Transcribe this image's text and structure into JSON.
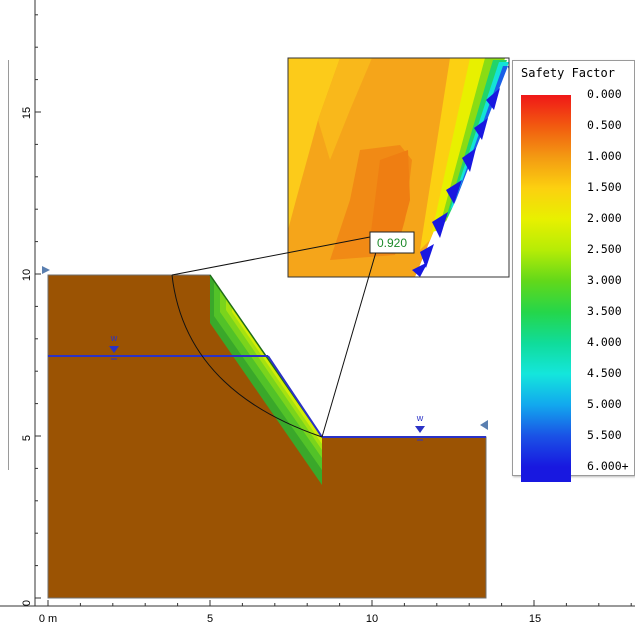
{
  "scale": {
    "x_ticks": [
      "0 m",
      "5",
      "10",
      "15"
    ],
    "y_ticks": [
      "0",
      "5",
      "10",
      "15"
    ]
  },
  "water_marker": "w",
  "callout_value": "0.920",
  "legend": {
    "title": "Safety Factor",
    "entries": [
      {
        "label": "0.000",
        "color": "#f01818"
      },
      {
        "label": "0.500",
        "color": "#f25a10"
      },
      {
        "label": "1.000",
        "color": "#f39a12"
      },
      {
        "label": "1.500",
        "color": "#fcd010"
      },
      {
        "label": "2.000",
        "color": "#e8f000"
      },
      {
        "label": "2.500",
        "color": "#b6ec06"
      },
      {
        "label": "3.000",
        "color": "#62d81a"
      },
      {
        "label": "3.500",
        "color": "#25d64a"
      },
      {
        "label": "4.000",
        "color": "#10dc9a"
      },
      {
        "label": "4.500",
        "color": "#14e6dc"
      },
      {
        "label": "5.000",
        "color": "#12a8ee"
      },
      {
        "label": "5.500",
        "color": "#1a52e6"
      },
      {
        "label": "6.000+",
        "color": "#1818e0"
      }
    ]
  },
  "colors": {
    "soil": "#9b5303",
    "water_table": "#2b32c6",
    "callout_text": "#1d8a2a"
  }
}
